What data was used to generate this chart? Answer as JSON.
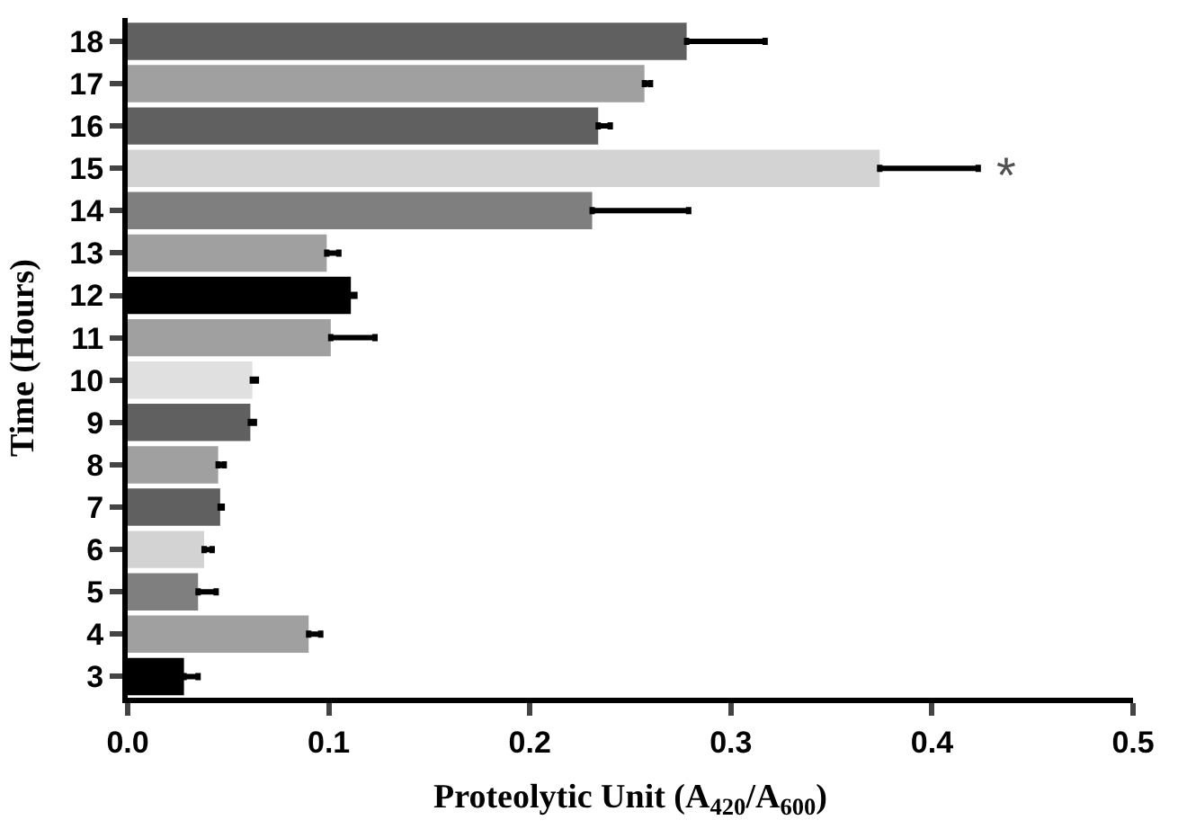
{
  "chart_data": {
    "type": "bar",
    "orientation": "horizontal",
    "xlabel": "Proteolytic Unit (A$_{420}$/A$_{600}$)",
    "ylabel": "Time (Hours)",
    "categories": [
      "18",
      "17",
      "16",
      "15",
      "14",
      "13",
      "12",
      "11",
      "10",
      "9",
      "8",
      "7",
      "6",
      "5",
      "4",
      "3"
    ],
    "values": [
      0.278,
      0.257,
      0.234,
      0.374,
      0.231,
      0.099,
      0.111,
      0.101,
      0.062,
      0.061,
      0.045,
      0.046,
      0.038,
      0.035,
      0.09,
      0.028
    ],
    "errors": [
      [
        0.278,
        0.317
      ],
      [
        0.257,
        0.26
      ],
      [
        0.234,
        0.24
      ],
      [
        0.374,
        0.423
      ],
      [
        0.231,
        0.279
      ],
      [
        0.099,
        0.105
      ],
      [
        0.111,
        0.113
      ],
      [
        0.101,
        0.123
      ],
      [
        0.062,
        0.064
      ],
      [
        0.061,
        0.063
      ],
      [
        0.045,
        0.048
      ],
      [
        0.046,
        0.047
      ],
      [
        0.038,
        0.042
      ],
      [
        0.035,
        0.044
      ],
      [
        0.09,
        0.096
      ],
      [
        0.028,
        0.035
      ]
    ],
    "colors": [
      "#606060",
      "#a0a0a0",
      "#606060",
      "#d3d3d3",
      "#7f7f7f",
      "#a0a0a0",
      "#000000",
      "#a0a0a0",
      "#e0e0e0",
      "#606060",
      "#a0a0a0",
      "#606060",
      "#d3d3d3",
      "#7f7f7f",
      "#a0a0a0",
      "#000000"
    ],
    "xlim": [
      0,
      0.5
    ],
    "xticks": [
      {
        "value": 0,
        "label": "0.0"
      },
      0.1,
      0.2,
      0.3,
      0.4,
      0.5
    ],
    "annotations": [
      "*"
    ]
  }
}
